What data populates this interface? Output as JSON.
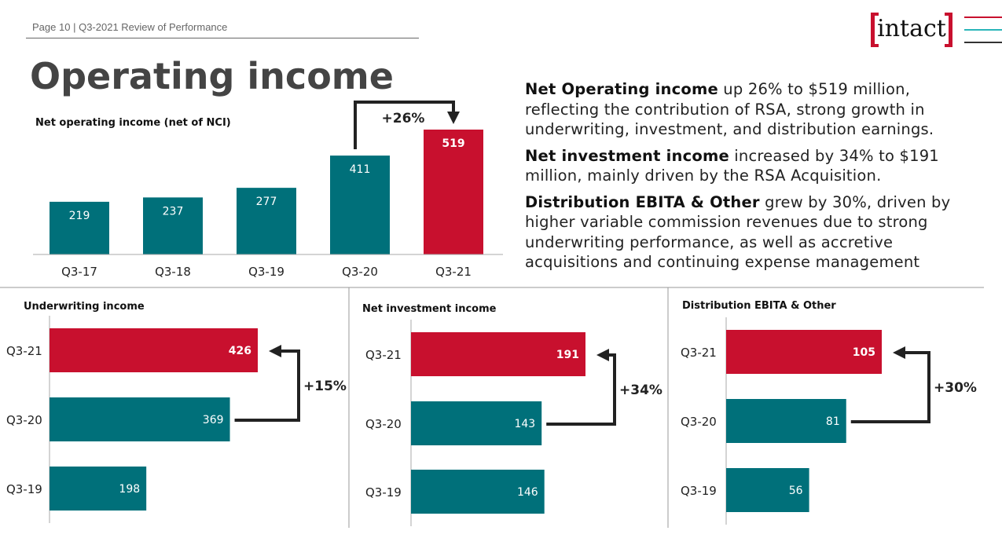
{
  "header": {
    "page": "Page 10",
    "separator": "|",
    "section": "Q3-2021 Review of Performance"
  },
  "title": "Operating income",
  "logo": {
    "text": "intact",
    "colors": [
      "#c8102e",
      "#2ab5b9",
      "#333333"
    ]
  },
  "commentary": [
    {
      "bold": "Net Operating income",
      "text": " up 26% to $519 million, reflecting the contribution of RSA, strong growth in underwriting, investment, and distribution earnings."
    },
    {
      "bold": "Net investment income",
      "text": " increased by 34% to $191 million, mainly driven by the RSA Acquisition."
    },
    {
      "bold": "Distribution EBITA & Other",
      "text": " grew by 30%, driven by higher variable commission revenues due to strong underwriting performance, as well as accretive acquisitions and continuing expense management"
    }
  ],
  "colors": {
    "teal": "#00707a",
    "red": "#c8102e"
  },
  "chart_data": [
    {
      "type": "bar",
      "orientation": "vertical",
      "title": "Net operating income (net of NCI)",
      "categories": [
        "Q3-17",
        "Q3-18",
        "Q3-19",
        "Q3-20",
        "Q3-21"
      ],
      "values": [
        219,
        237,
        277,
        411,
        519
      ],
      "highlight": "Q3-21",
      "annotation": "+26%"
    },
    {
      "type": "bar",
      "orientation": "horizontal",
      "title": "Underwriting income",
      "categories": [
        "Q3-21",
        "Q3-20",
        "Q3-19"
      ],
      "values": [
        426,
        369,
        198
      ],
      "highlight": "Q3-21",
      "annotation": "+15%"
    },
    {
      "type": "bar",
      "orientation": "horizontal",
      "title": "Net investment income",
      "categories": [
        "Q3-21",
        "Q3-20",
        "Q3-19"
      ],
      "values": [
        191,
        143,
        146
      ],
      "highlight": "Q3-21",
      "annotation": "+34%"
    },
    {
      "type": "bar",
      "orientation": "horizontal",
      "title": "Distribution EBITA & Other",
      "categories": [
        "Q3-21",
        "Q3-20",
        "Q3-19"
      ],
      "values": [
        105,
        81,
        56
      ],
      "highlight": "Q3-21",
      "annotation": "+30%"
    }
  ]
}
